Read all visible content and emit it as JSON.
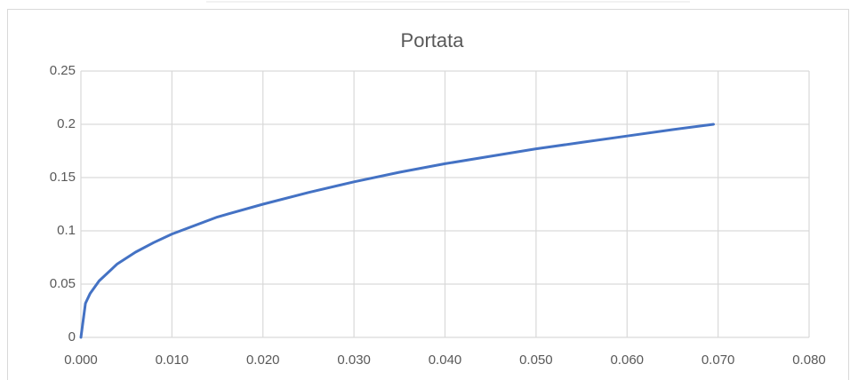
{
  "chart_data": {
    "type": "line",
    "title": "Portata",
    "x": [
      0,
      0.0005,
      0.001,
      0.002,
      0.004,
      0.006,
      0.008,
      0.01,
      0.015,
      0.02,
      0.025,
      0.03,
      0.035,
      0.04,
      0.045,
      0.05,
      0.055,
      0.06,
      0.065,
      0.0695
    ],
    "series": [
      {
        "color": "#4472c4",
        "values": [
          0,
          0.032,
          0.041,
          0.053,
          0.069,
          0.08,
          0.089,
          0.097,
          0.113,
          0.125,
          0.136,
          0.146,
          0.155,
          0.163,
          0.17,
          0.177,
          0.183,
          0.189,
          0.195,
          0.2
        ]
      }
    ],
    "xlim": [
      0,
      0.08
    ],
    "xticks": [
      {
        "value": 0,
        "label": "0.000"
      },
      {
        "value": 0.01,
        "label": "0.010"
      },
      {
        "value": 0.02,
        "label": "0.020"
      },
      {
        "value": 0.03,
        "label": "0.030"
      },
      {
        "value": 0.04,
        "label": "0.040"
      },
      {
        "value": 0.05,
        "label": "0.050"
      },
      {
        "value": 0.06,
        "label": "0.060"
      },
      {
        "value": 0.07,
        "label": "0.070"
      },
      {
        "value": 0.08,
        "label": "0.080"
      }
    ],
    "ylim": [
      0,
      0.25
    ],
    "yticks": [
      0,
      0.05,
      0.1,
      0.15,
      0.2,
      0.25
    ],
    "grid": true
  }
}
